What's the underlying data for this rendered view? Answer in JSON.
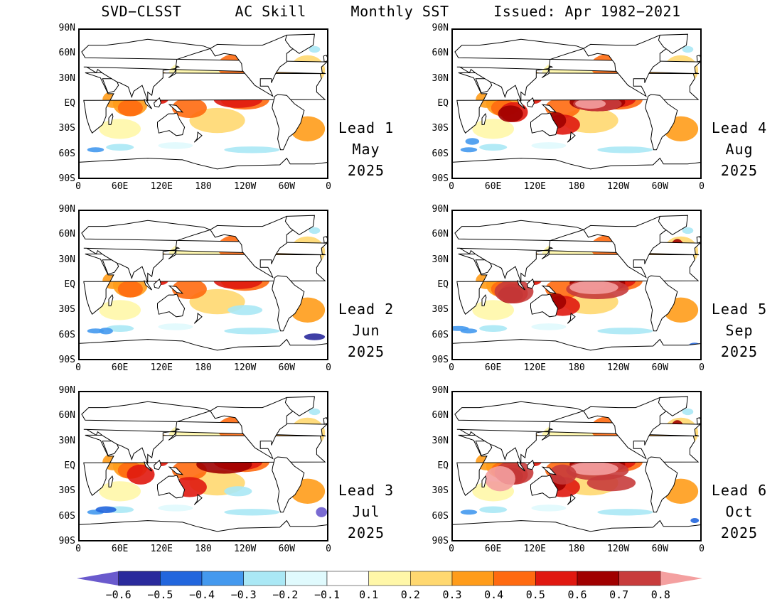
{
  "title": "SVD−CLSST      AC Skill     Monthly SST     Issued: Apr 1982−2021",
  "lat_ticks": [
    "90N",
    "60N",
    "30N",
    "EQ",
    "30S",
    "60S",
    "90S"
  ],
  "lon_ticks": [
    "0",
    "60E",
    "120E",
    "180",
    "120W",
    "60W",
    "0"
  ],
  "panels": [
    {
      "lead": "Lead 1",
      "month": "May",
      "year": "2025",
      "skill_max": 0.6
    },
    {
      "lead": "Lead 2",
      "month": "Jun",
      "year": "2025",
      "skill_max": 0.6
    },
    {
      "lead": "Lead 3",
      "month": "Jul",
      "year": "2025",
      "skill_max": 0.7
    },
    {
      "lead": "Lead 4",
      "month": "Aug",
      "year": "2025",
      "skill_max": 0.8
    },
    {
      "lead": "Lead 5",
      "month": "Sep",
      "year": "2025",
      "skill_max": 0.8
    },
    {
      "lead": "Lead 6",
      "month": "Oct",
      "year": "2025",
      "skill_max": 0.8
    }
  ],
  "colorbar": {
    "labels": [
      "−0.6",
      "−0.5",
      "−0.4",
      "−0.3",
      "−0.2",
      "−0.1",
      "0.1",
      "0.2",
      "0.3",
      "0.4",
      "0.5",
      "0.6",
      "0.7",
      "0.8"
    ],
    "colors": [
      "#6a5acd",
      "#2a2a9c",
      "#2266dd",
      "#4499ee",
      "#aae8f5",
      "#e0fafd",
      "#ffffff",
      "#fff7a8",
      "#ffd870",
      "#ff9c1a",
      "#ff6a10",
      "#e01810",
      "#a00000",
      "#c83c3c",
      "#f4a0a0"
    ]
  }
}
